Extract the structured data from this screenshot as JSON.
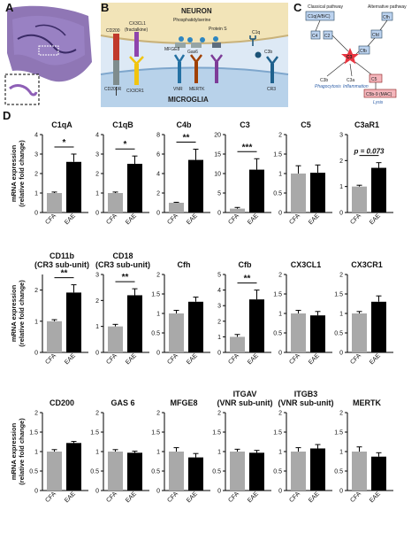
{
  "panels": {
    "a": "A",
    "b": "B",
    "c": "C",
    "d": "D"
  },
  "panel_b": {
    "neuron": "NEURON",
    "microglia": "MICROGLIA",
    "phosphatidylserine": "Phosphatidylserine",
    "protein_s": "Protein S",
    "cd200": "CD200",
    "cd200r": "CD200R",
    "cx3cl1": "CX3CL1",
    "fractalkine": "(fractalkine)",
    "cx3cr1": "CX3CR1",
    "mfge8": "MFGE8",
    "gas6": "Gas6",
    "vnr": "VNR",
    "mertk": "MERTK",
    "c1q": "C1q",
    "c3b": "C3b",
    "cr3": "CR3"
  },
  "panel_c": {
    "classical": "Classical pathway",
    "alternative": "Alternative pathway",
    "c1q": "C1q(A/B/C)",
    "c4": "C4",
    "c2": "C2",
    "cfb": "Cfb",
    "cfd": "Cfd",
    "cfh": "Cfh",
    "c3": "C3",
    "c3b": "C3b",
    "phagocytosis": "Phagocytosis",
    "c3a": "C3a",
    "inflammation": "Inflammation",
    "c5": "C5",
    "c5b9": "C5b-9 (MAC)",
    "lysis": "Lysis"
  },
  "colors": {
    "cfa": "#a9a9a9",
    "eae": "#000000",
    "c3_star": "#e8343f",
    "c5_box": "#f4b6bc",
    "cfh_box": "#bcd3ef"
  },
  "chart_data": [
    {
      "type": "bar",
      "title": "C1qA",
      "categories": [
        "CFA",
        "EAE"
      ],
      "values": [
        1.0,
        2.6
      ],
      "errors": [
        0.05,
        0.4
      ],
      "ylim": [
        0,
        4
      ],
      "yticks": [
        0,
        1,
        2,
        3,
        4
      ],
      "sig": "*",
      "ylabel": "mRNA expression (relative fold change)"
    },
    {
      "type": "bar",
      "title": "C1qB",
      "categories": [
        "CFA",
        "EAE"
      ],
      "values": [
        1.0,
        2.5
      ],
      "errors": [
        0.05,
        0.4
      ],
      "ylim": [
        0,
        4
      ],
      "yticks": [
        0,
        1,
        2,
        3,
        4
      ],
      "sig": "*"
    },
    {
      "type": "bar",
      "title": "C4b",
      "categories": [
        "CFA",
        "EAE"
      ],
      "values": [
        1.0,
        5.4
      ],
      "errors": [
        0.05,
        1.1
      ],
      "ylim": [
        0,
        8
      ],
      "yticks": [
        0,
        2,
        4,
        6,
        8
      ],
      "sig": "**"
    },
    {
      "type": "bar",
      "title": "C3",
      "categories": [
        "CFA",
        "EAE"
      ],
      "values": [
        1.0,
        11.0
      ],
      "errors": [
        0.3,
        2.8
      ],
      "ylim": [
        0,
        20
      ],
      "yticks": [
        0,
        5,
        10,
        15,
        20
      ],
      "sig": "***"
    },
    {
      "type": "bar",
      "title": "C5",
      "categories": [
        "CFA",
        "EAE"
      ],
      "values": [
        1.0,
        1.02
      ],
      "errors": [
        0.2,
        0.2
      ],
      "ylim": [
        0,
        2
      ],
      "yticks": [
        0,
        0.5,
        1,
        1.5,
        2
      ],
      "sig": ""
    },
    {
      "type": "bar",
      "title": "C3aR1",
      "categories": [
        "CFA",
        "EAE"
      ],
      "values": [
        1.0,
        1.72
      ],
      "errors": [
        0.05,
        0.2
      ],
      "ylim": [
        0,
        3
      ],
      "yticks": [
        0,
        1,
        2,
        3
      ],
      "sig": "p = 0.073"
    },
    {
      "type": "bar",
      "title": "CD11b",
      "subtitle": "(CR3 sub-unit)",
      "categories": [
        "CFA",
        "EAE"
      ],
      "values": [
        1.0,
        1.92
      ],
      "errors": [
        0.05,
        0.25
      ],
      "ylim": [
        0,
        2.5
      ],
      "yticks": [
        0,
        1,
        2
      ],
      "sig": "**",
      "ylabel": "mRNA expression (relative fold change)"
    },
    {
      "type": "bar",
      "title": "CD18",
      "subtitle": "(CR3 sub-unit)",
      "categories": [
        "CFA",
        "EAE"
      ],
      "values": [
        1.0,
        2.2
      ],
      "errors": [
        0.08,
        0.25
      ],
      "ylim": [
        0,
        3
      ],
      "yticks": [
        0,
        1,
        2,
        3
      ],
      "sig": "**"
    },
    {
      "type": "bar",
      "title": "Cfh",
      "categories": [
        "CFA",
        "EAE"
      ],
      "values": [
        1.0,
        1.3
      ],
      "errors": [
        0.08,
        0.12
      ],
      "ylim": [
        0,
        2
      ],
      "yticks": [
        0,
        0.5,
        1,
        1.5,
        2
      ],
      "sig": ""
    },
    {
      "type": "bar",
      "title": "Cfb",
      "categories": [
        "CFA",
        "EAE"
      ],
      "values": [
        1.0,
        3.4
      ],
      "errors": [
        0.15,
        0.6
      ],
      "ylim": [
        0,
        5
      ],
      "yticks": [
        0,
        1,
        2,
        3,
        4,
        5
      ],
      "sig": "**"
    },
    {
      "type": "bar",
      "title": "CX3CL1",
      "categories": [
        "CFA",
        "EAE"
      ],
      "values": [
        1.0,
        0.95
      ],
      "errors": [
        0.08,
        0.1
      ],
      "ylim": [
        0,
        2
      ],
      "yticks": [
        0,
        0.5,
        1,
        1.5,
        2
      ],
      "sig": ""
    },
    {
      "type": "bar",
      "title": "CX3CR1",
      "categories": [
        "CFA",
        "EAE"
      ],
      "values": [
        1.0,
        1.3
      ],
      "errors": [
        0.05,
        0.15
      ],
      "ylim": [
        0,
        2
      ],
      "yticks": [
        0,
        0.5,
        1,
        1.5,
        2
      ],
      "sig": ""
    },
    {
      "type": "bar",
      "title": "CD200",
      "categories": [
        "CFA",
        "EAE"
      ],
      "values": [
        1.0,
        1.22
      ],
      "errors": [
        0.05,
        0.04
      ],
      "ylim": [
        0,
        2
      ],
      "yticks": [
        0,
        0.5,
        1,
        1.5,
        2
      ],
      "sig": "",
      "ylabel": "mRNA expression (relative fold change)"
    },
    {
      "type": "bar",
      "title": "GAS 6",
      "categories": [
        "CFA",
        "EAE"
      ],
      "values": [
        1.0,
        0.97
      ],
      "errors": [
        0.05,
        0.04
      ],
      "ylim": [
        0,
        2
      ],
      "yticks": [
        0,
        0.5,
        1,
        1.5,
        2
      ],
      "sig": ""
    },
    {
      "type": "bar",
      "title": "MFGE8",
      "categories": [
        "CFA",
        "EAE"
      ],
      "values": [
        1.0,
        0.85
      ],
      "errors": [
        0.1,
        0.1
      ],
      "ylim": [
        0,
        2
      ],
      "yticks": [
        0,
        0.5,
        1,
        1.5,
        2
      ],
      "sig": ""
    },
    {
      "type": "bar",
      "title": "ITGAV",
      "subtitle": "(VNR sub-unit)",
      "categories": [
        "CFA",
        "EAE"
      ],
      "values": [
        1.0,
        0.97
      ],
      "errors": [
        0.06,
        0.06
      ],
      "ylim": [
        0,
        2
      ],
      "yticks": [
        0,
        0.5,
        1,
        1.5,
        2
      ],
      "sig": ""
    },
    {
      "type": "bar",
      "title": "ITGB3",
      "subtitle": "(VNR sub-unit)",
      "categories": [
        "CFA",
        "EAE"
      ],
      "values": [
        1.0,
        1.08
      ],
      "errors": [
        0.1,
        0.1
      ],
      "ylim": [
        0,
        2
      ],
      "yticks": [
        0,
        0.5,
        1,
        1.5,
        2
      ],
      "sig": ""
    },
    {
      "type": "bar",
      "title": "MERTK",
      "categories": [
        "CFA",
        "EAE"
      ],
      "values": [
        1.0,
        0.87
      ],
      "errors": [
        0.12,
        0.1
      ],
      "ylim": [
        0,
        2
      ],
      "yticks": [
        0,
        0.5,
        1,
        1.5,
        2
      ],
      "sig": ""
    }
  ]
}
